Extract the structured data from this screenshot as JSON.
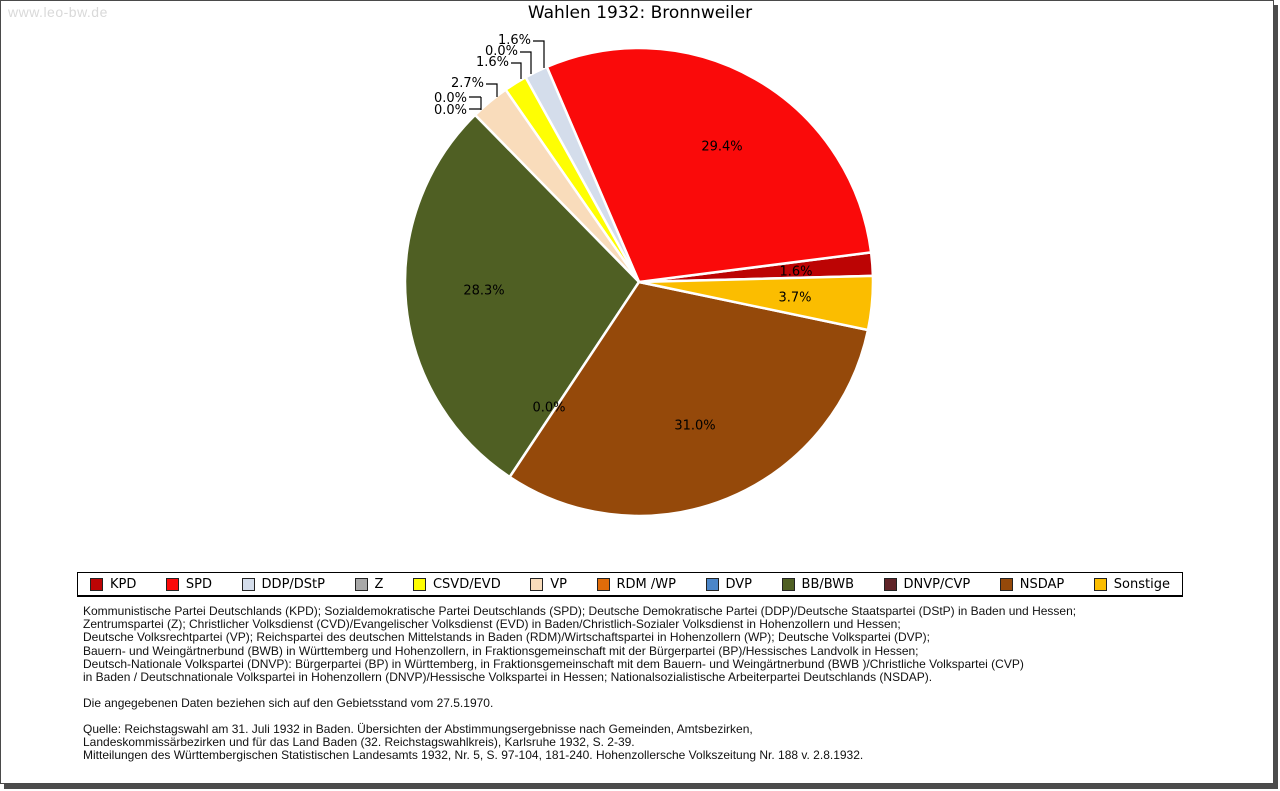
{
  "watermark": "www.leo-bw.de",
  "title": "Wahlen 1932: Bronnweiler",
  "chart_data": {
    "type": "pie",
    "title": "Wahlen 1932: Bronnweiler",
    "unit": "%",
    "direction": "counterclockwise",
    "start_angle_deg": 1.5,
    "legend_position": "bottom",
    "slices": [
      {
        "party": "KPD",
        "value": 1.6,
        "pct_label": "1.6%",
        "color": "#bc0404",
        "label_style": "inside"
      },
      {
        "party": "SPD",
        "value": 29.4,
        "pct_label": "29.4%",
        "color": "#fa0a0a",
        "label_style": "inside"
      },
      {
        "party": "DDP/DStP",
        "value": 1.6,
        "pct_label": "1.6%",
        "color": "#d4ddeb",
        "label_style": "callout"
      },
      {
        "party": "Z",
        "value": 0.0,
        "pct_label": "0.0%",
        "color": "#a8a8a8",
        "label_style": "callout"
      },
      {
        "party": "CSVD/EVD",
        "value": 1.6,
        "pct_label": "1.6%",
        "color": "#fefe03",
        "label_style": "callout"
      },
      {
        "party": "VP",
        "value": 2.7,
        "pct_label": "2.7%",
        "color": "#f9dcbb",
        "label_style": "callout"
      },
      {
        "party": "RDM /WP",
        "value": 0.0,
        "pct_label": "0.0%",
        "color": "#e06c09",
        "label_style": "callout"
      },
      {
        "party": "DVP",
        "value": 0.0,
        "pct_label": "0.0%",
        "color": "#4c86c8",
        "label_style": "callout"
      },
      {
        "party": "BB/BWB",
        "value": 28.3,
        "pct_label": "28.3%",
        "color": "#4f5f23",
        "label_style": "inside"
      },
      {
        "party": "DNVP/CVP",
        "value": 0.0,
        "pct_label": "0.0%",
        "color": "#602428",
        "label_style": "inside"
      },
      {
        "party": "NSDAP",
        "value": 31.0,
        "pct_label": "31.0%",
        "color": "#95490a",
        "label_style": "inside"
      },
      {
        "party": "Sonstige",
        "value": 3.7,
        "pct_label": "3.7%",
        "color": "#fbbd00",
        "label_style": "inside"
      }
    ]
  },
  "footer": {
    "party_definitions": [
      "Kommunistische Partei Deutschlands (KPD); Sozialdemokratische Partei Deutschlands (SPD); Deutsche Demokratische Partei (DDP)/Deutsche Staatspartei (DStP) in Baden und Hessen;",
      "Zentrumspartei (Z); Christlicher Volksdienst (CVD)/Evangelischer Volksdienst (EVD) in Baden/Christlich-Sozialer Volksdienst in Hohenzollern und Hessen;",
      "Deutsche Volksrechtpartei (VP); Reichspartei des deutschen Mittelstands in Baden (RDM)/Wirtschaftspartei in Hohenzollern (WP); Deutsche Volkspartei (DVP);",
      "Bauern- und Weingärtnerbund (BWB) in Württemberg und Hohenzollern, in Fraktionsgemeinschaft mit der Bürgerpartei (BP)/Hessisches Landvolk in Hessen;",
      "Deutsch-Nationale Volkspartei (DNVP): Bürgerpartei (BP) in Württemberg, in Fraktionsgemeinschaft mit dem Bauern- und Weingärtnerbund (BWB )/Christliche Volkspartei (CVP)",
      "in Baden / Deutschnationale Volkspartei in Hohenzollern (DNVP)/Hessische Volkspartei in Hessen; Nationalsozialistische Arbeiterpartei Deutschlands (NSDAP)."
    ],
    "note": "Die angegebenen Daten beziehen sich auf den Gebietsstand vom 27.5.1970.",
    "source": [
      "Quelle: Reichstagswahl am 31. Juli 1932 in Baden. Übersichten der Abstimmungsergebnisse nach Gemeinden, Amtsbezirken,",
      "Landeskommissärbezirken und für das Land Baden (32. Reichstagswahlkreis), Karlsruhe 1932, S. 2-39.",
      "Mitteilungen des Württembergischen Statistischen Landesamts 1932, Nr. 5, S. 97-104, 181-240. Hohenzollersche Volkszeitung Nr. 188 v. 2.8.1932."
    ]
  }
}
